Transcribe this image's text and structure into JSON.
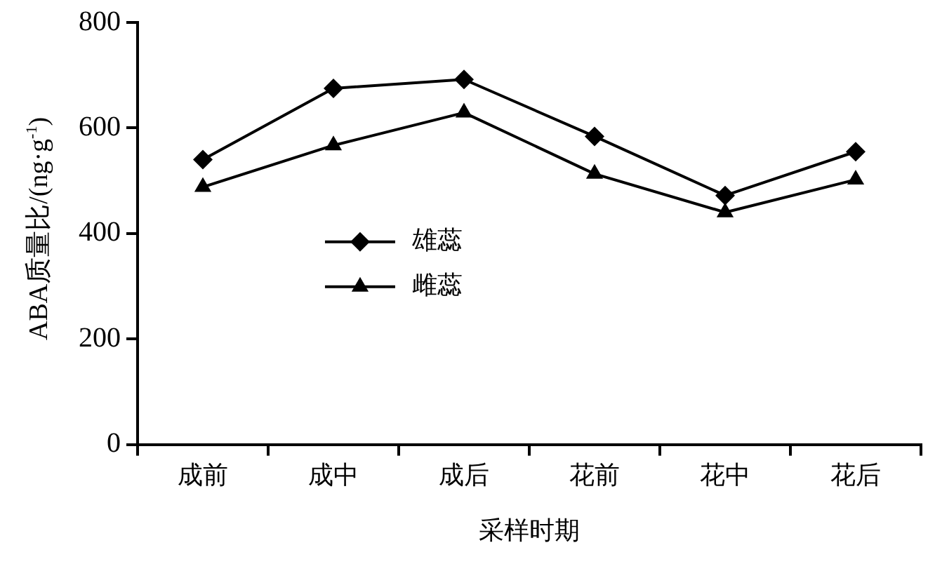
{
  "chart_data": {
    "type": "line",
    "ylabel": "ABA质量比/(ng·g$^{-1}$)",
    "xlabel": "采样时期",
    "categories": [
      "成前",
      "成中",
      "成后",
      "花前",
      "花中",
      "花后"
    ],
    "series": [
      {
        "name": "雄蕊",
        "color": "#000000",
        "marker": "diamond",
        "values": [
          540,
          675,
          692,
          584,
          472,
          555
        ]
      },
      {
        "name": "雌蕊",
        "color": "#000000",
        "marker": "triangle",
        "values": [
          488,
          567,
          629,
          513,
          440,
          502
        ]
      }
    ],
    "ylim": [
      0,
      800
    ],
    "yticks": [
      0,
      200,
      400,
      600,
      800
    ],
    "grid": false,
    "legend": "center",
    "line_style": "solid"
  }
}
